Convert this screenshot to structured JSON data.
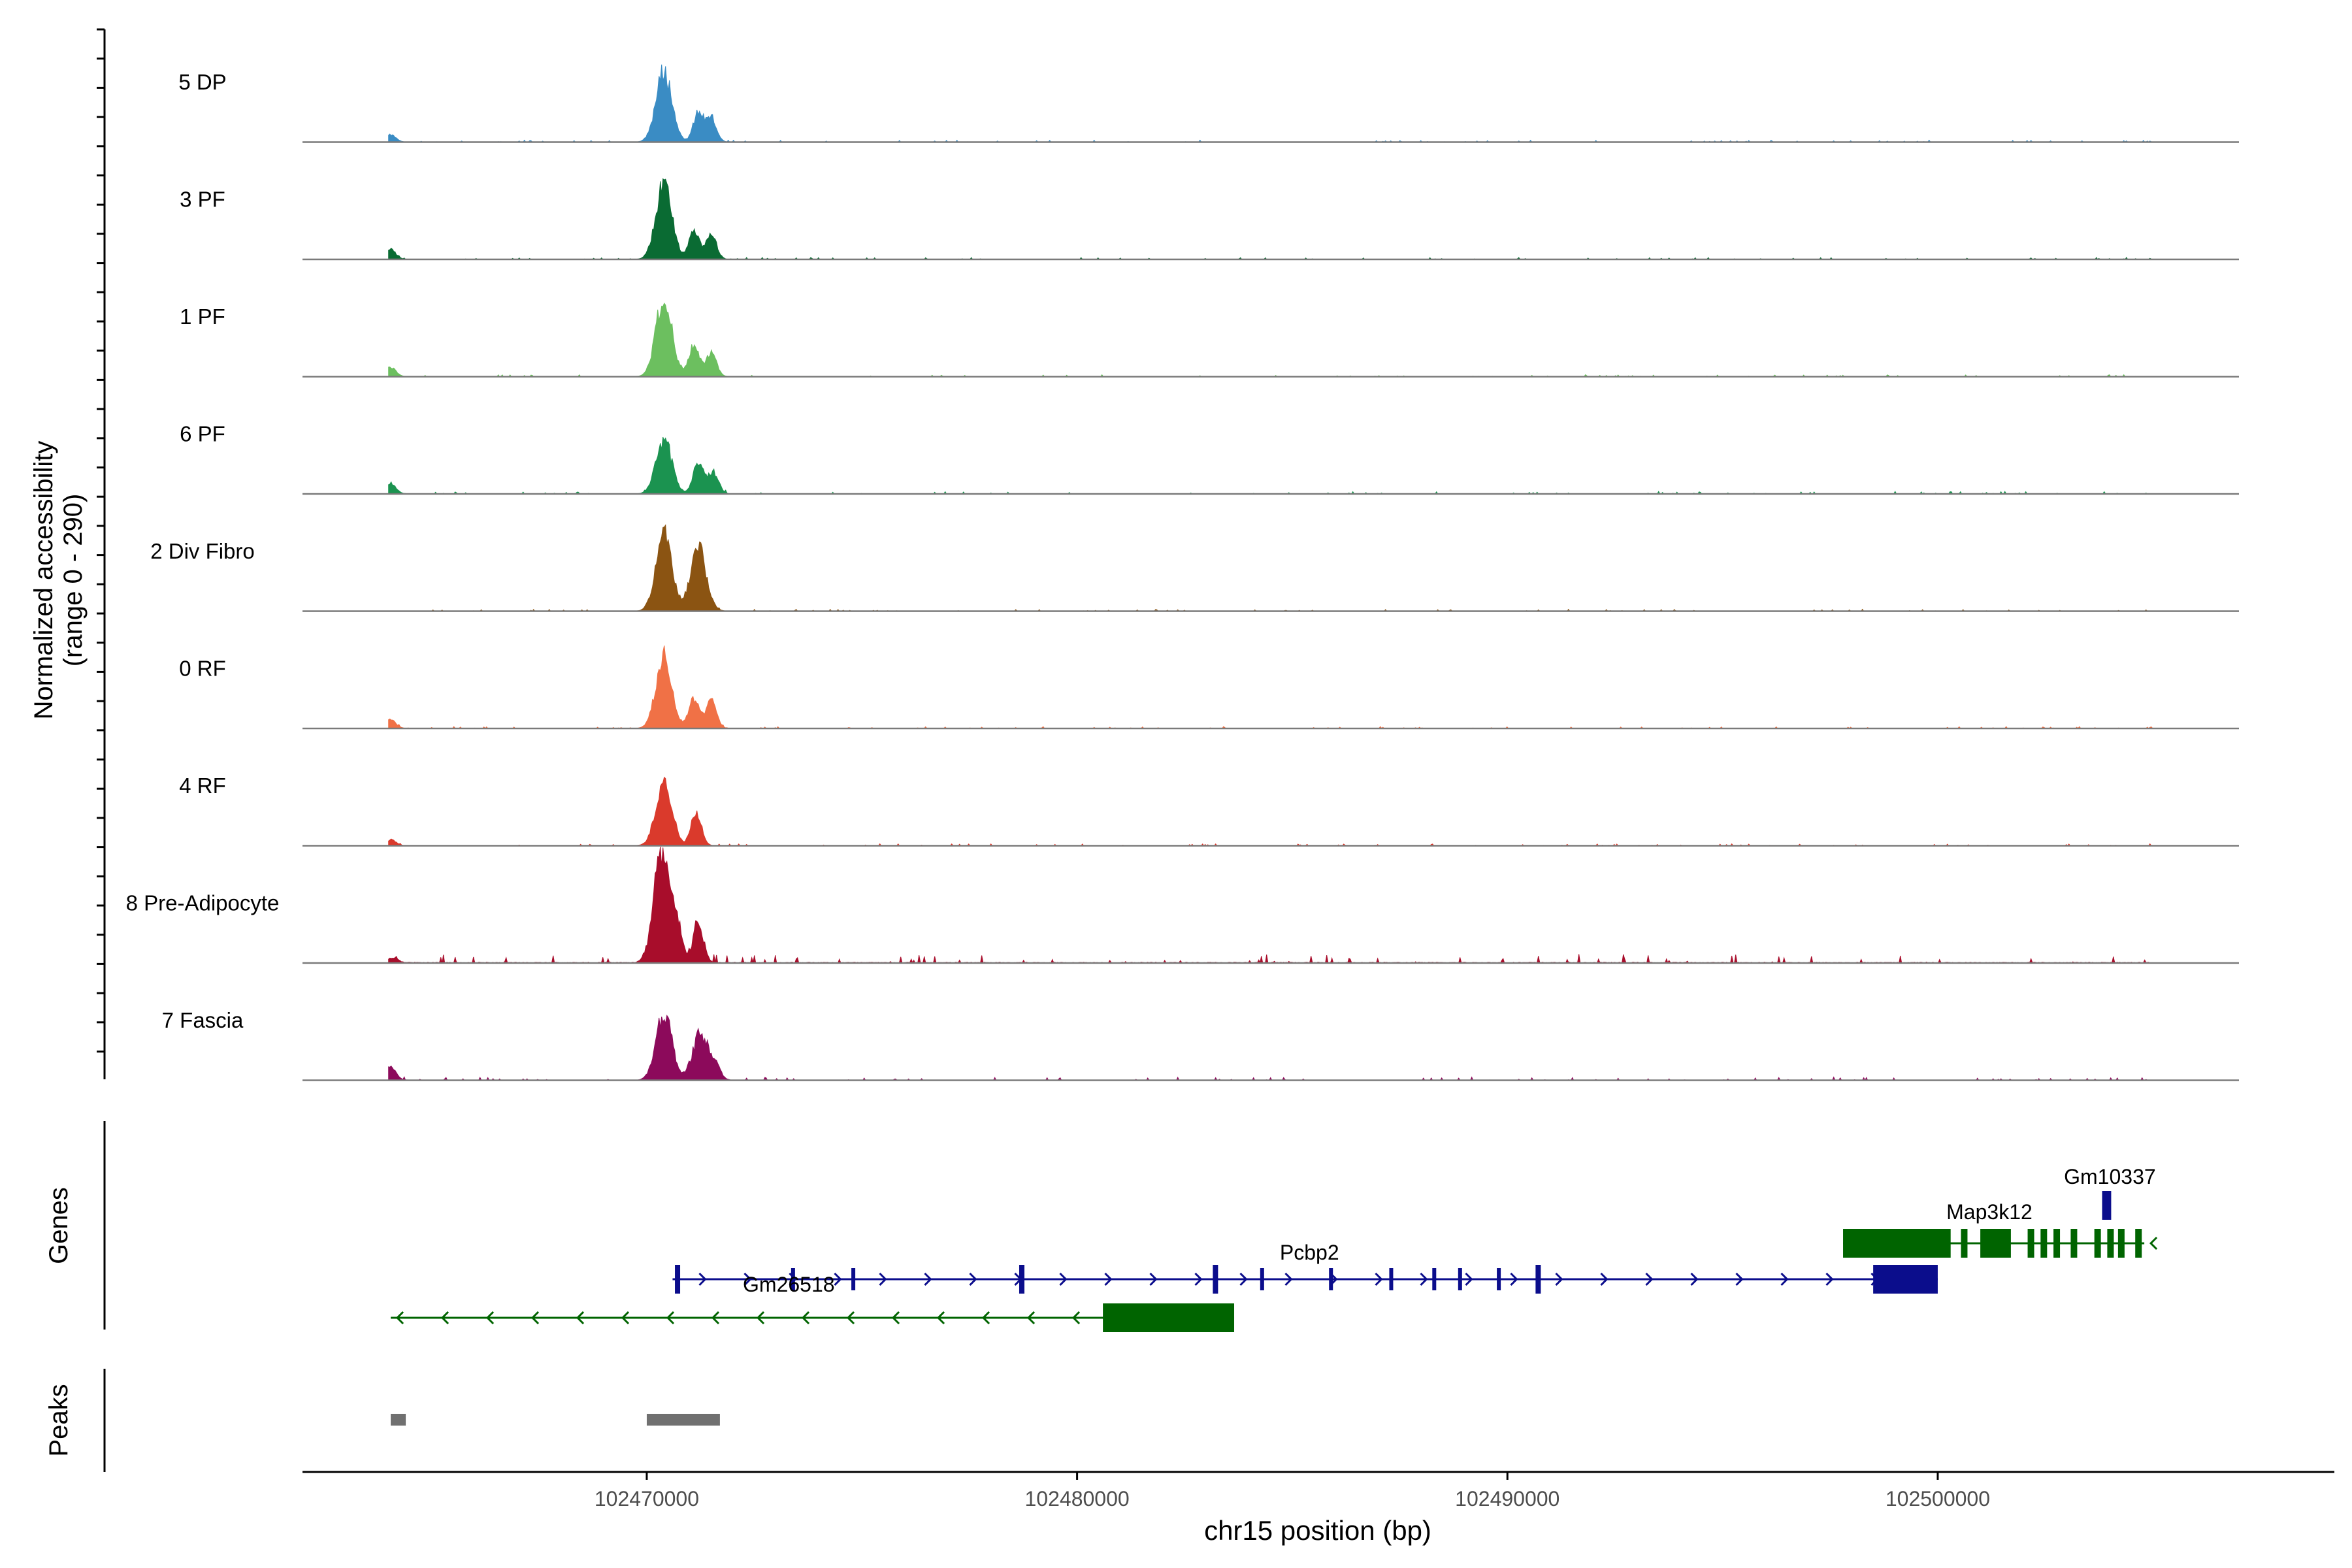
{
  "chart_data": {
    "type": "area",
    "y_axis_label": [
      "Normalized accessibility",
      "(range 0 - 290)"
    ],
    "y_range": [
      0,
      290
    ],
    "genes_axis_label": "Genes",
    "peaks_axis_label": "Peaks",
    "xlabel": "chr15 position (bp)",
    "x_range": [
      102462000,
      102507000
    ],
    "x_ticks": [
      {
        "value": 102470000,
        "label": "102470000"
      },
      {
        "value": 102480000,
        "label": "102480000"
      },
      {
        "value": 102490000,
        "label": "102490000"
      },
      {
        "value": 102500000,
        "label": "102500000"
      }
    ],
    "tracks": [
      {
        "name": "5 DP",
        "color": "#3a8cc4",
        "peaks": [
          [
            102464050,
            18
          ],
          [
            102470400,
            180
          ],
          [
            102471200,
            75
          ],
          [
            102471500,
            60
          ]
        ],
        "noise": 3
      },
      {
        "name": "3 PF",
        "color": "#0a6b33",
        "peaks": [
          [
            102464050,
            25
          ],
          [
            102470400,
            195
          ],
          [
            102471100,
            70
          ],
          [
            102471500,
            65
          ]
        ],
        "noise": 3
      },
      {
        "name": "1 PF",
        "color": "#6cbf5f",
        "peaks": [
          [
            102464050,
            25
          ],
          [
            102470400,
            205
          ],
          [
            102471100,
            80
          ],
          [
            102471500,
            60
          ]
        ],
        "noise": 3
      },
      {
        "name": "6 PF",
        "color": "#1b9350",
        "peaks": [
          [
            102464050,
            28
          ],
          [
            102470400,
            135
          ],
          [
            102471200,
            80
          ],
          [
            102471550,
            55
          ]
        ],
        "noise": 4
      },
      {
        "name": "2 Div Fibro",
        "color": "#8b5412",
        "peaks": [
          [
            102470400,
            205
          ],
          [
            102471200,
            160
          ]
        ],
        "noise": 3
      },
      {
        "name": "0 RF",
        "color": "#f07146",
        "peaks": [
          [
            102464050,
            22
          ],
          [
            102470400,
            185
          ],
          [
            102471100,
            75
          ],
          [
            102471500,
            70
          ]
        ],
        "noise": 3
      },
      {
        "name": "4 RF",
        "color": "#da3a2c",
        "peaks": [
          [
            102464050,
            15
          ],
          [
            102470400,
            170
          ],
          [
            102471150,
            85
          ]
        ],
        "noise": 3
      },
      {
        "name": "8 Pre-Adipocyte",
        "color": "#a80d2b",
        "peaks": [
          [
            102464100,
            12
          ],
          [
            102470350,
            285
          ],
          [
            102470700,
            90
          ],
          [
            102471200,
            100
          ]
        ],
        "noise": 14
      },
      {
        "name": "7 Fascia",
        "color": "#8c0a5b",
        "peaks": [
          [
            102464050,
            35
          ],
          [
            102470400,
            175
          ],
          [
            102471250,
            120
          ],
          [
            102471600,
            30
          ]
        ],
        "noise": 5
      }
    ],
    "genes": [
      {
        "name": "Pcbp2",
        "strand": "+",
        "color": "#0b0d8c",
        "start": 102470600,
        "end": 102500000,
        "row": 1
      },
      {
        "name": "Gm26518",
        "strand": "-",
        "color": "#006400",
        "start": 102464050,
        "end": 102483650,
        "row": 2
      },
      {
        "name": "Map3k12",
        "strand": "-",
        "color": "#006400",
        "start": 102497800,
        "end": 102504800,
        "row": 0
      },
      {
        "name": "Gm10337",
        "strand": "+",
        "color": "#0b0d8c",
        "start": 102503850,
        "end": 102504000,
        "row": -1
      }
    ],
    "peaks": [
      {
        "start": 102464050,
        "end": 102464400,
        "color": "#707070"
      },
      {
        "start": 102470000,
        "end": 102471700,
        "color": "#707070"
      }
    ]
  }
}
